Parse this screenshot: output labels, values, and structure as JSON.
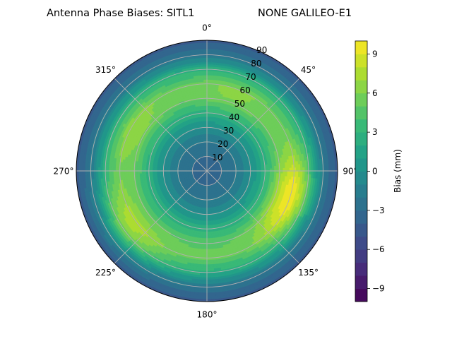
{
  "chart_data": {
    "type": "heatmap",
    "projection": "polar",
    "title_left": "Antenna Phase Biases: SITL1",
    "title_right": "NONE GALILEO-E1",
    "theta_tick_labels": [
      "0°",
      "45°",
      "90°",
      "135°",
      "180°",
      "225°",
      "270°",
      "315°"
    ],
    "theta_ticks_deg": [
      0,
      45,
      90,
      135,
      180,
      225,
      270,
      315
    ],
    "theta_zero_location": "top",
    "theta_direction": "clockwise",
    "r_ticks": [
      10,
      20,
      30,
      40,
      50,
      60,
      70,
      80,
      90
    ],
    "r_tick_labels": [
      "10",
      "20",
      "30",
      "40",
      "50",
      "60",
      "70",
      "80",
      "90"
    ],
    "r_range": [
      0,
      90
    ],
    "grid": true,
    "colorbar": {
      "label": "Bias (mm)",
      "colormap": "viridis",
      "range": [
        -10,
        10
      ],
      "levels": 20,
      "ticks": [
        -9,
        -6,
        -3,
        0,
        3,
        6,
        9
      ],
      "tick_labels": [
        "−9",
        "−6",
        "−3",
        "0",
        "3",
        "6",
        "9"
      ]
    },
    "bias_profile": {
      "r": [
        0,
        10,
        20,
        30,
        40,
        50,
        60,
        70,
        80,
        90
      ],
      "bias_mm": [
        -3.2,
        -3.0,
        -2.0,
        0.0,
        2.5,
        4.8,
        5.2,
        2.5,
        -2.0,
        -4.5
      ]
    },
    "hotspots": [
      {
        "azimuth_deg": 100,
        "r": 62,
        "bias_mm": 8.0
      },
      {
        "azimuth_deg": 120,
        "r": 58,
        "bias_mm": 7.5
      },
      {
        "azimuth_deg": 300,
        "r": 58,
        "bias_mm": 6.8
      },
      {
        "azimuth_deg": 235,
        "r": 68,
        "bias_mm": 6.5
      },
      {
        "azimuth_deg": 20,
        "r": 55,
        "bias_mm": 6.2
      }
    ]
  }
}
